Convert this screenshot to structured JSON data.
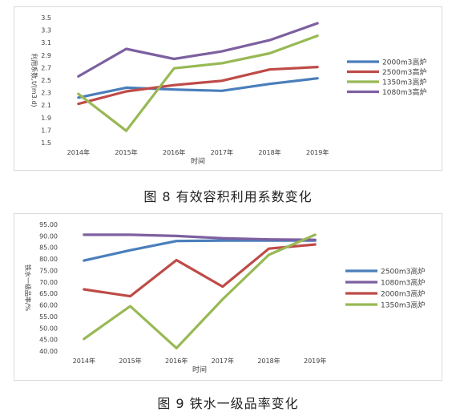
{
  "captions": {
    "fig8": "图 8   有效容积利用系数变化",
    "fig9": "图 9   铁水一级品率变化"
  },
  "chart_data": [
    {
      "type": "line",
      "title": "",
      "xlabel": "时间",
      "ylabel": "利用系数,t/(m3.d)",
      "categories": [
        "2014年",
        "2015年",
        "2016年",
        "2017年",
        "2018年",
        "2019年"
      ],
      "ylim": [
        1.5,
        3.5
      ],
      "yticks": [
        "1.5",
        "1.7",
        "1.9",
        "2.1",
        "2.3",
        "2.5",
        "2.7",
        "2.9",
        "3.1",
        "3.3",
        "3.5"
      ],
      "grid": false,
      "legend": "right",
      "series": [
        {
          "name": "2000m3高炉",
          "color": "#4a7ebb",
          "values": [
            2.22,
            2.38,
            2.35,
            2.33,
            2.44,
            2.53
          ]
        },
        {
          "name": "2500m3高炉",
          "color": "#be4b48",
          "values": [
            2.12,
            2.32,
            2.42,
            2.49,
            2.67,
            2.71
          ]
        },
        {
          "name": "1350m3高炉",
          "color": "#98b954",
          "values": [
            2.28,
            1.69,
            2.69,
            2.77,
            2.93,
            3.21
          ]
        },
        {
          "name": "1080m3高炉",
          "color": "#7d60a0",
          "values": [
            2.56,
            3.0,
            2.84,
            2.96,
            3.14,
            3.41
          ]
        }
      ]
    },
    {
      "type": "line",
      "title": "",
      "xlabel": "时间",
      "ylabel": "铁水一级品率/%",
      "categories": [
        "2014年",
        "2015年",
        "2016年",
        "2017年",
        "2018年",
        "2019年"
      ],
      "ylim": [
        40,
        95
      ],
      "yticks": [
        "40.00",
        "45.00",
        "50.00",
        "55.00",
        "60.00",
        "65.00",
        "70.00",
        "75.00",
        "80.00",
        "85.00",
        "90.00",
        "95.00"
      ],
      "grid": false,
      "legend": "right",
      "series": [
        {
          "name": "2500m3高炉",
          "color": "#4a7ebb",
          "values": [
            79.3,
            83.8,
            87.8,
            88.0,
            88.0,
            88.0
          ]
        },
        {
          "name": "1080m3高炉",
          "color": "#7d60a0",
          "values": [
            90.5,
            90.5,
            90.0,
            89.0,
            88.5,
            88.3
          ]
        },
        {
          "name": "2000m3高炉",
          "color": "#be4b48",
          "values": [
            66.8,
            63.8,
            79.5,
            68.0,
            84.5,
            86.3
          ]
        },
        {
          "name": "1350m3高炉",
          "color": "#98b954",
          "values": [
            45.3,
            59.5,
            41.3,
            62.5,
            81.8,
            90.5
          ]
        }
      ]
    }
  ]
}
